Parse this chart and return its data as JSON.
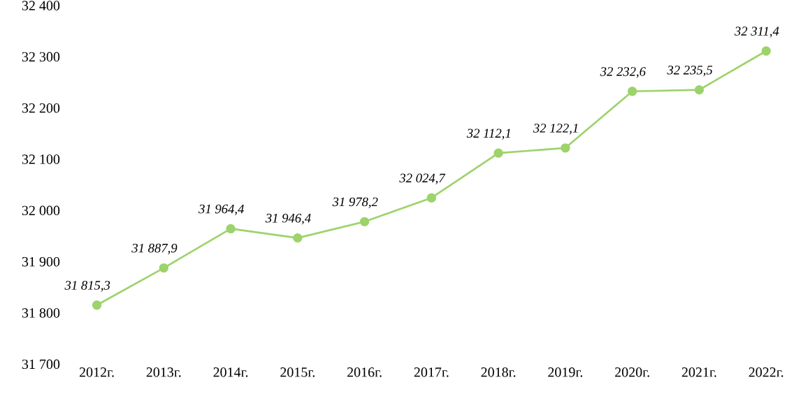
{
  "chart_data": {
    "type": "line",
    "categories": [
      "2012г.",
      "2013г.",
      "2014г.",
      "2015г.",
      "2016г.",
      "2017г.",
      "2018г.",
      "2019г.",
      "2020г.",
      "2021г.",
      "2022г."
    ],
    "values": [
      31815.3,
      31887.9,
      31964.4,
      31946.4,
      31978.2,
      32024.7,
      32112.1,
      32122.1,
      32232.6,
      32235.5,
      32311.4
    ],
    "value_labels": [
      "31 815,3",
      "31 887,9",
      "31 964,4",
      "31 946,4",
      "31 978,2",
      "32 024,7",
      "32 112,1",
      "32 122,1",
      "32 232,6",
      "32 235,5",
      "32 311,4"
    ],
    "color": "#9dd36b",
    "marker": "circle",
    "grid": false,
    "ylim": [
      31700,
      32400
    ],
    "yticks": [
      {
        "value": 31700,
        "label": "31 700"
      },
      {
        "value": 31800,
        "label": "31 800"
      },
      {
        "value": 31900,
        "label": "31 900"
      },
      {
        "value": 32000,
        "label": "32 000"
      },
      {
        "value": 32100,
        "label": "32 100"
      },
      {
        "value": 32200,
        "label": "32 200"
      },
      {
        "value": 32300,
        "label": "32 300"
      },
      {
        "value": 32400,
        "label": "32 400"
      }
    ]
  }
}
